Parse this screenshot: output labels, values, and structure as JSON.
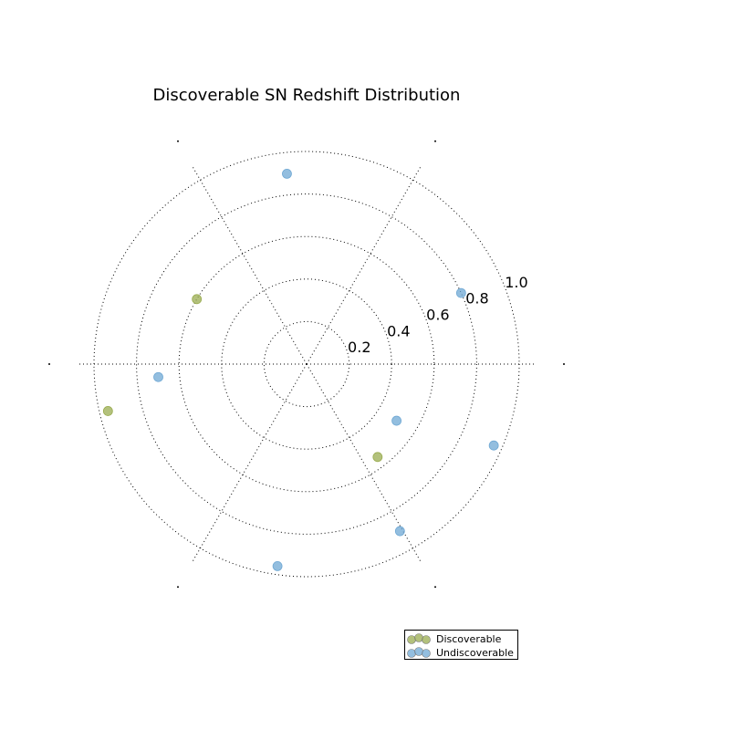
{
  "chart_data": {
    "type": "scatter",
    "projection": "polar",
    "title": "Discoverable SN Redshift Distribution",
    "r_range": [
      0,
      1.0
    ],
    "r_ticks": [
      "0.2",
      "0.4",
      "0.6",
      "0.8",
      "1.0"
    ],
    "r_tick_values": [
      0.2,
      0.4,
      0.6,
      0.8,
      1.0
    ],
    "theta_gridlines_deg": [
      0,
      60,
      120,
      180,
      240,
      300
    ],
    "grid": true,
    "grid_style": "dotted",
    "legend_position": "bottom-right",
    "series": [
      {
        "name": "Discoverable",
        "color": "#9aac50",
        "points": [
          {
            "theta_deg": 149.4,
            "r": 0.6
          },
          {
            "theta_deg": 193.3,
            "r": 0.96
          },
          {
            "theta_deg": 307.4,
            "r": 0.55
          }
        ]
      },
      {
        "name": "Undiscoverable",
        "color": "#6fa8d4",
        "points": [
          {
            "theta_deg": 95.9,
            "r": 0.9
          },
          {
            "theta_deg": 24.7,
            "r": 0.8
          },
          {
            "theta_deg": 185.0,
            "r": 0.7
          },
          {
            "theta_deg": 327.8,
            "r": 0.5
          },
          {
            "theta_deg": 336.5,
            "r": 0.96
          },
          {
            "theta_deg": 299.2,
            "r": 0.9
          },
          {
            "theta_deg": 261.8,
            "r": 0.96
          }
        ]
      }
    ]
  }
}
